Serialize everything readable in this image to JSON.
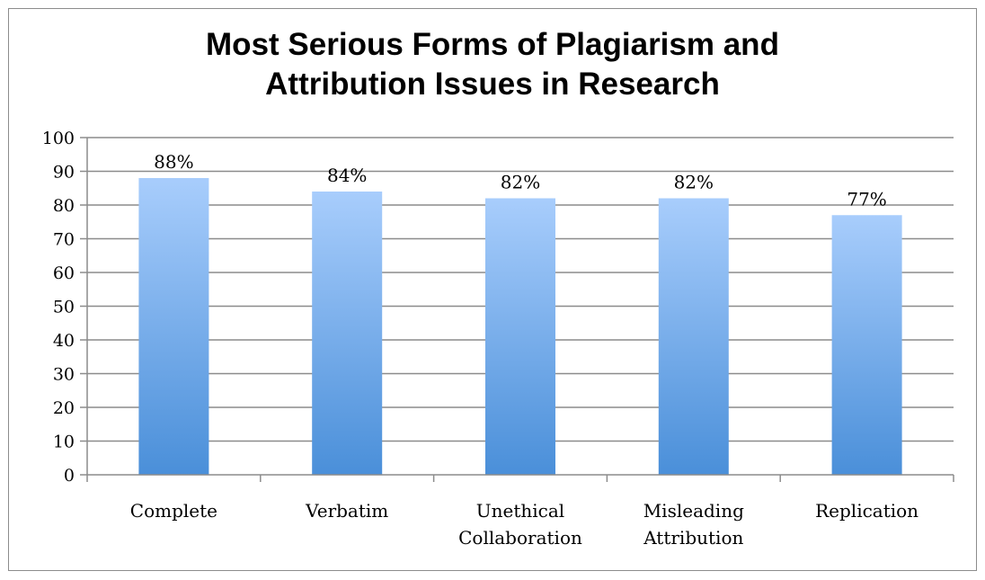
{
  "chart_data": {
    "type": "bar",
    "title_lines": [
      "Most Serious Forms of Plagiarism and",
      "Attribution Issues in Research"
    ],
    "categories": [
      [
        "Complete"
      ],
      [
        "Verbatim"
      ],
      [
        "Unethical",
        "Collaboration"
      ],
      [
        "Misleading",
        "Attribution"
      ],
      [
        "Replication"
      ]
    ],
    "values": [
      88,
      84,
      82,
      82,
      77
    ],
    "data_labels": [
      "88%",
      "84%",
      "82%",
      "82%",
      "77%"
    ],
    "ylim": [
      0,
      100
    ],
    "yticks": [
      0,
      10,
      20,
      30,
      40,
      50,
      60,
      70,
      80,
      90,
      100
    ],
    "grid": true,
    "legend": "none",
    "colors": {
      "bar_top": "#a8cdfc",
      "bar_bottom": "#4a8fd9",
      "grid": "#8c8c8c"
    }
  }
}
